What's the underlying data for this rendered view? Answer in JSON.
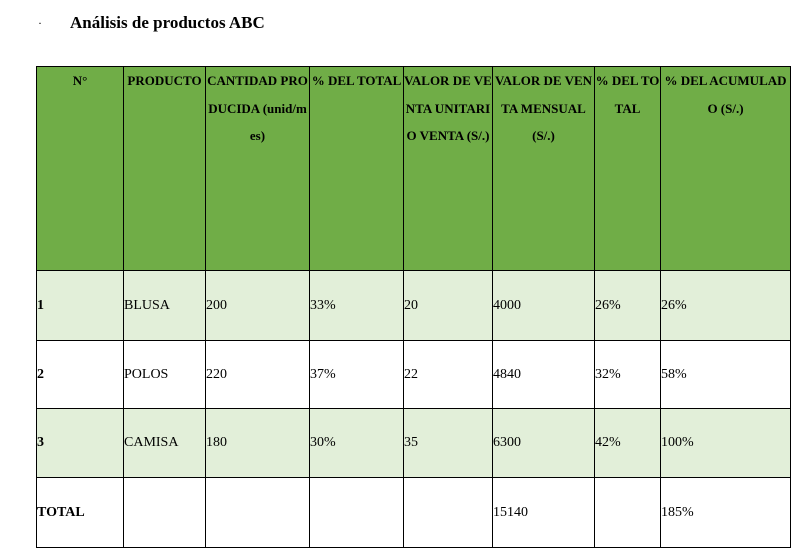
{
  "bullet": "·",
  "title": "Análisis de productos ABC",
  "table": {
    "headers": [
      "N°",
      "PRODUCTO",
      "CANTIDAD PRODUCIDA (unid/mes)",
      "% DEL TOTAL",
      "VALOR DE VENTA UNITARIO VENTA (S/.)",
      "VALOR DE VENTA MENSUAL (S/.)",
      "% DEL TOTAL",
      "% DEL ACUMULADO (S/.)"
    ],
    "rows": [
      [
        "1",
        "BLUSA",
        "200",
        "33%",
        "20",
        "4000",
        "26%",
        "26%"
      ],
      [
        "2",
        "POLOS",
        "220",
        "37%",
        "22",
        "4840",
        "32%",
        "58%"
      ],
      [
        "3",
        "CAMISA",
        "180",
        "30%",
        "35",
        "6300",
        "42%",
        "100%"
      ]
    ],
    "total": [
      "TOTAL",
      "",
      "",
      "",
      "",
      "15140",
      "",
      "185%"
    ]
  }
}
